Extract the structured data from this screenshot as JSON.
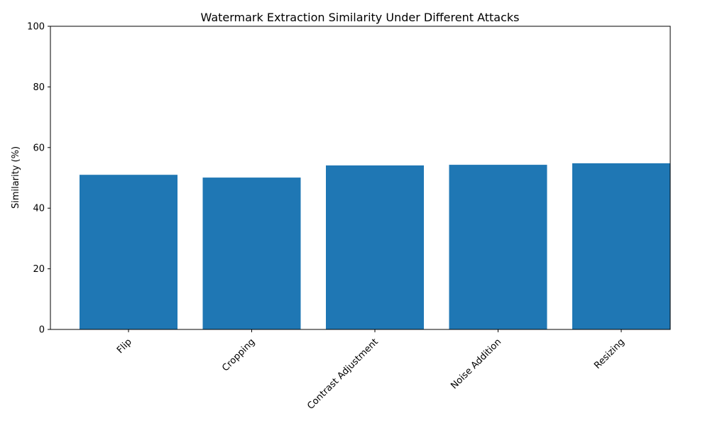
{
  "chart_data": {
    "type": "bar",
    "title": "Watermark Extraction Similarity Under Different Attacks",
    "xlabel": "",
    "ylabel": "Similarity (%)",
    "categories": [
      "Flip",
      "Cropping",
      "Contrast Adjustment",
      "Noise Addition",
      "Resizing"
    ],
    "values": [
      51.0,
      50.1,
      54.1,
      54.3,
      54.8
    ],
    "ylim": [
      0,
      100
    ],
    "yticks": [
      0,
      20,
      40,
      60,
      80,
      100
    ],
    "grid": false,
    "legend": "none",
    "bar_color": "#1f77b4",
    "x_tick_rotation_deg": 45
  }
}
